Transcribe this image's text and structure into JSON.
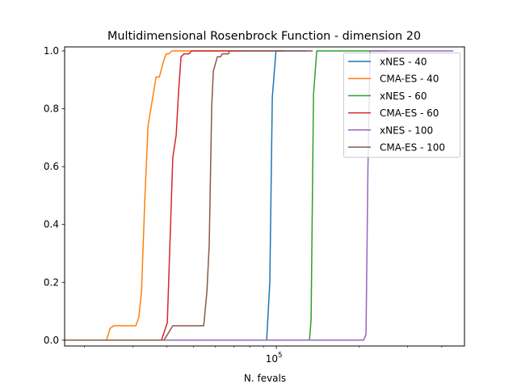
{
  "chart_data": {
    "type": "line",
    "title": "Multidimensional Rosenbrock Function - dimension 20",
    "xlabel": "N. fevals",
    "ylabel": "",
    "xscale": "log",
    "xlim": [
      16960,
      484000
    ],
    "ylim": [
      -0.02,
      1.014
    ],
    "xticks_major": [
      {
        "value": 100000,
        "label_base": "10",
        "label_exp": "5"
      }
    ],
    "yticks": [
      {
        "value": 0,
        "label": "0.0"
      },
      {
        "value": 0.2,
        "label": "0.2"
      },
      {
        "value": 0.4,
        "label": "0.4"
      },
      {
        "value": 0.6,
        "label": "0.6"
      },
      {
        "value": 0.8,
        "label": "0.8"
      },
      {
        "value": 1.0,
        "label": "1.0"
      }
    ],
    "grid": false,
    "legend_position": "top-right",
    "series": [
      {
        "name": "xNES - 40",
        "color": "#1f77b4",
        "x": [
          16960,
          92200,
          94700,
          96700,
          99700,
          129300
        ],
        "y": [
          0,
          0,
          0.2,
          0.84,
          1.0,
          1.0
        ]
      },
      {
        "name": "CMA-ES - 40",
        "color": "#ff7f0e",
        "x": [
          16960,
          24100,
          24800,
          25600,
          30800,
          31600,
          32300,
          33200,
          34100,
          35500,
          36500,
          37500,
          38000,
          39000,
          39800,
          40600,
          41700,
          75200
        ],
        "y": [
          0,
          0,
          0.04,
          0.05,
          0.05,
          0.08,
          0.17,
          0.48,
          0.74,
          0.84,
          0.91,
          0.91,
          0.93,
          0.97,
          0.99,
          0.99,
          1.0,
          1.0
        ]
      },
      {
        "name": "xNES - 60",
        "color": "#2ca02c",
        "x": [
          16960,
          132000,
          133800,
          136600,
          140300,
          254600
        ],
        "y": [
          0,
          0,
          0.07,
          0.85,
          1.0,
          1.0
        ]
      },
      {
        "name": "CMA-ES - 60",
        "color": "#d62728",
        "x": [
          16960,
          38200,
          40100,
          42000,
          43200,
          44100,
          45000,
          46200,
          48100,
          49100,
          105600
        ],
        "y": [
          0,
          0,
          0.06,
          0.63,
          0.71,
          0.86,
          0.98,
          0.99,
          0.99,
          1.0,
          1.0
        ]
      },
      {
        "name": "xNES - 100",
        "color": "#9467bd",
        "x": [
          16960,
          207800,
          212100,
          215500,
          219400,
          440700
        ],
        "y": [
          0,
          0,
          0.02,
          0.6,
          1.0,
          1.0
        ]
      },
      {
        "name": "CMA-ES - 100",
        "color": "#8c564b",
        "x": [
          16960,
          39000,
          42000,
          54400,
          55900,
          57000,
          58200,
          59000,
          61000,
          62700,
          63500,
          67100,
          67500,
          135600
        ],
        "y": [
          0,
          0,
          0.05,
          0.05,
          0.17,
          0.33,
          0.81,
          0.93,
          0.98,
          0.98,
          0.99,
          0.99,
          1.0,
          1.0
        ]
      }
    ]
  }
}
